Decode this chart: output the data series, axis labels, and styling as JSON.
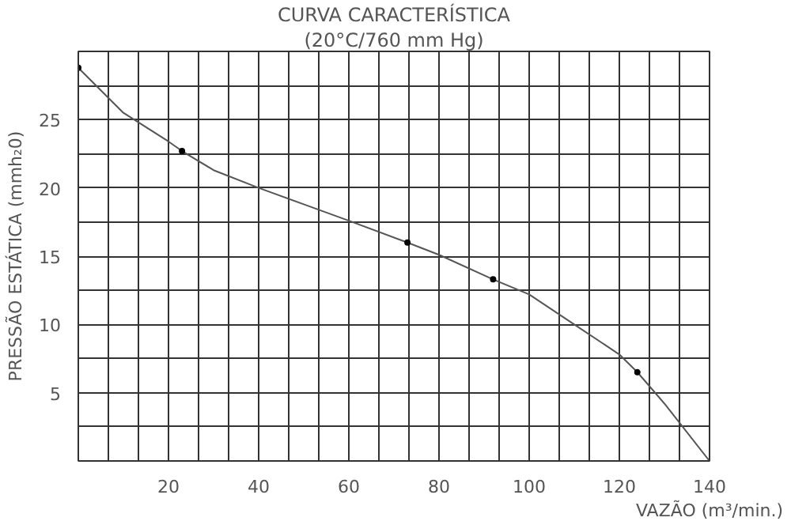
{
  "chart_data": {
    "type": "line",
    "title": "CURVA CARACTERÍSTICA",
    "subtitle": "(20°C/760 mm Hg)",
    "xlabel": "VAZÃO (m³/min.)",
    "ylabel": "PRESSÃO ESTÁTICA (mmh₂0)",
    "xlim": [
      0,
      140
    ],
    "ylim": [
      0,
      30
    ],
    "xticks": [
      {
        "value": 0,
        "label": null
      },
      {
        "value": 6.667,
        "label": null
      },
      {
        "value": 13.333,
        "label": null
      },
      20,
      {
        "value": 26.667,
        "label": null
      },
      {
        "value": 33.333,
        "label": null
      },
      40,
      {
        "value": 46.667,
        "label": null
      },
      {
        "value": 53.333,
        "label": null
      },
      60,
      {
        "value": 66.667,
        "label": null
      },
      {
        "value": 73.333,
        "label": null
      },
      80,
      {
        "value": 86.667,
        "label": null
      },
      {
        "value": 93.333,
        "label": null
      },
      100,
      {
        "value": 106.667,
        "label": null
      },
      {
        "value": 113.333,
        "label": null
      },
      120,
      {
        "value": 126.667,
        "label": null
      },
      {
        "value": 133.333,
        "label": null
      },
      140
    ],
    "yticks": [
      {
        "value": 0,
        "label": null
      },
      {
        "value": 2.5,
        "label": null
      },
      5,
      {
        "value": 7.5,
        "label": null
      },
      10,
      {
        "value": 12.5,
        "label": null
      },
      15,
      {
        "value": 17.5,
        "label": null
      },
      20,
      {
        "value": 22.5,
        "label": null
      },
      25,
      {
        "value": 27.5,
        "label": null
      },
      {
        "value": 30,
        "label": null
      }
    ],
    "grid": true,
    "series": [
      {
        "color": "#555555",
        "marker": "none",
        "x": [
          0,
          10,
          20,
          23,
          30,
          40,
          50,
          60,
          73,
          80,
          92,
          100,
          110,
          120,
          124,
          130,
          140
        ],
        "values": [
          28.8,
          25.5,
          23.4,
          22.7,
          21.3,
          20,
          18.8,
          17.6,
          16,
          15.1,
          13.3,
          12.2,
          10,
          7.8,
          6.5,
          4.2,
          0
        ]
      },
      {
        "type": "scatter",
        "color": "#000000",
        "marker": "circle",
        "x": [
          0,
          23,
          73,
          92,
          124
        ],
        "values": [
          28.8,
          22.7,
          16,
          13.3,
          6.5
        ]
      }
    ]
  }
}
